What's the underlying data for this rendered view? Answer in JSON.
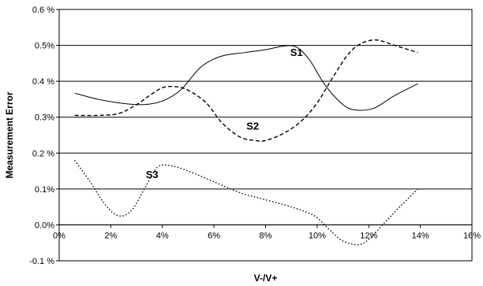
{
  "chart_data": {
    "type": "line",
    "title": "",
    "xlabel": "V-/V+",
    "ylabel": "Measurement Error",
    "xlim": [
      0,
      16
    ],
    "ylim": [
      -0.1,
      0.6
    ],
    "grid": "horizontal",
    "x_ticks": [
      0,
      2,
      4,
      6,
      8,
      10,
      12,
      14,
      16
    ],
    "x_tick_labels": [
      "0%",
      "2%",
      "4%",
      "6%",
      "8%",
      "10%",
      "12%",
      "14%",
      "16%"
    ],
    "y_ticks": [
      -0.1,
      0.0,
      0.1,
      0.2,
      0.3,
      0.4,
      0.5,
      0.6
    ],
    "y_tick_labels": [
      "-0.1 %",
      "0.0%",
      "0.1%",
      "0.2 %",
      "0.3%",
      "0.4 %",
      "0.5%",
      "0.6 %"
    ],
    "series": [
      {
        "name": "S1",
        "line_style": "solid",
        "color": "#000000",
        "label_at": [
          9.2,
          0.47
        ],
        "x": [
          0.6,
          1.5,
          2.5,
          3.3,
          4.0,
          4.7,
          5.5,
          6.3,
          7.2,
          8.0,
          8.7,
          9.2,
          9.7,
          10.3,
          11.0,
          11.5,
          12.2,
          13.0,
          13.9
        ],
        "y": [
          0.367,
          0.35,
          0.338,
          0.335,
          0.345,
          0.375,
          0.44,
          0.47,
          0.48,
          0.488,
          0.498,
          0.495,
          0.46,
          0.39,
          0.335,
          0.32,
          0.325,
          0.36,
          0.393
        ]
      },
      {
        "name": "S2",
        "line_style": "dashed",
        "color": "#000000",
        "label_at": [
          7.5,
          0.265
        ],
        "x": [
          0.6,
          1.5,
          2.3,
          3.0,
          3.5,
          4.0,
          4.5,
          5.0,
          5.7,
          6.3,
          7.0,
          7.6,
          8.0,
          8.7,
          9.4,
          10.0,
          10.6,
          11.2,
          11.7,
          12.3,
          13.0,
          13.9
        ],
        "y": [
          0.305,
          0.305,
          0.31,
          0.335,
          0.36,
          0.382,
          0.385,
          0.375,
          0.34,
          0.285,
          0.245,
          0.235,
          0.235,
          0.255,
          0.29,
          0.34,
          0.41,
          0.475,
          0.505,
          0.515,
          0.5,
          0.48
        ]
      },
      {
        "name": "S3",
        "line_style": "dotted",
        "color": "#000000",
        "label_at": [
          3.6,
          0.13
        ],
        "x": [
          0.6,
          1.2,
          1.8,
          2.3,
          2.8,
          3.3,
          3.8,
          4.3,
          5.0,
          6.0,
          7.0,
          8.0,
          9.0,
          9.6,
          10.0,
          10.5,
          11.0,
          11.6,
          12.0,
          12.6,
          13.2,
          13.9
        ],
        "y": [
          0.18,
          0.12,
          0.055,
          0.025,
          0.04,
          0.1,
          0.16,
          0.165,
          0.15,
          0.12,
          0.09,
          0.07,
          0.05,
          0.035,
          0.02,
          -0.015,
          -0.045,
          -0.055,
          -0.04,
          0.005,
          0.05,
          0.1
        ]
      }
    ]
  }
}
